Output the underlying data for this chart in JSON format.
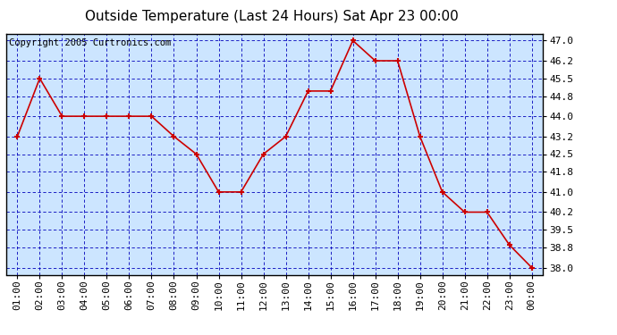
{
  "title": "Outside Temperature (Last 24 Hours) Sat Apr 23 00:00",
  "copyright_text": "Copyright 2005 Curtronics.com",
  "x_labels": [
    "01:00",
    "02:00",
    "03:00",
    "04:00",
    "05:00",
    "06:00",
    "07:00",
    "08:00",
    "09:00",
    "10:00",
    "11:00",
    "12:00",
    "13:00",
    "14:00",
    "15:00",
    "16:00",
    "17:00",
    "18:00",
    "19:00",
    "20:00",
    "21:00",
    "22:00",
    "23:00",
    "00:00"
  ],
  "y_values": [
    43.2,
    45.5,
    44.0,
    44.0,
    44.0,
    44.0,
    44.0,
    43.2,
    42.5,
    41.0,
    41.0,
    42.5,
    43.2,
    45.0,
    45.0,
    47.0,
    46.2,
    46.2,
    43.2,
    41.0,
    40.2,
    40.2,
    38.9,
    38.0
  ],
  "ylim_min": 37.72,
  "ylim_max": 47.28,
  "yticks": [
    38.0,
    38.8,
    39.5,
    40.2,
    41.0,
    41.8,
    42.5,
    43.2,
    44.0,
    44.8,
    45.5,
    46.2,
    47.0
  ],
  "line_color": "#cc0000",
  "marker_color": "#cc0000",
  "bg_color": "#cce5ff",
  "grid_color": "#0000bb",
  "border_color": "#000000",
  "title_color": "#000000",
  "title_fontsize": 11,
  "tick_fontsize": 8,
  "copyright_fontsize": 7.5
}
